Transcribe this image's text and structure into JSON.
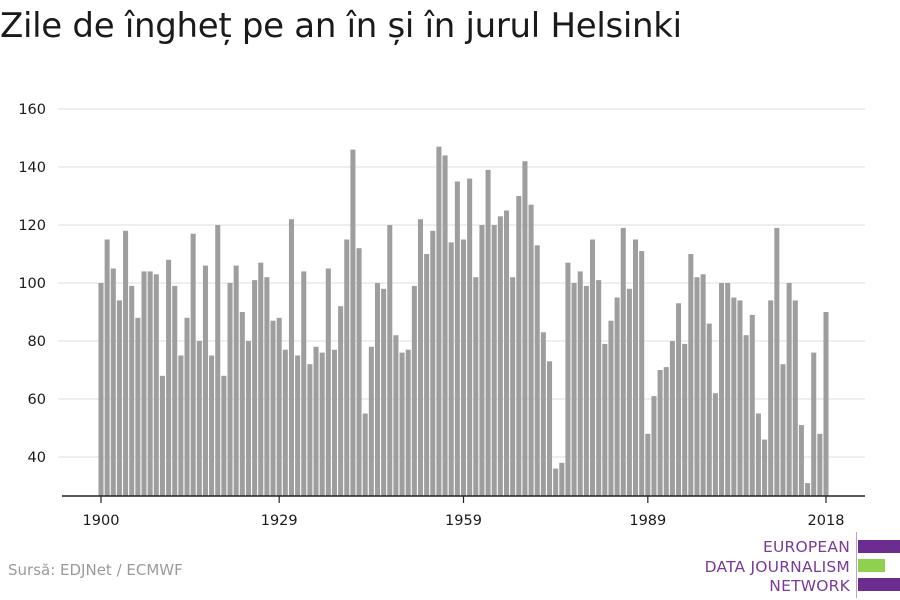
{
  "title": "Zile de îngheț pe an în și în jurul Helsinki",
  "source": "Sursă: EDJNet / ECMWF",
  "logo": {
    "lines": [
      "EUROPEAN",
      "DATA JOURNALISM",
      "NETWORK"
    ],
    "colors": {
      "text": "#7a3a9a",
      "purple": "#6b2d8f",
      "green": "#8fd14f"
    }
  },
  "colors": {
    "bar": "#9e9e9e",
    "grid": "#dddddd",
    "axis": "#222222",
    "tick_text": "#1a1a1a"
  },
  "chart_data": {
    "type": "bar",
    "title": "Zile de îngheț pe an în și în jurul Helsinki",
    "xlabel": "",
    "ylabel": "",
    "x_ticks": [
      "1900",
      "1929",
      "1959",
      "1989",
      "2018"
    ],
    "y_ticks": [
      40,
      60,
      80,
      100,
      120,
      140,
      160
    ],
    "ylim": [
      27,
      165
    ],
    "grid": "horizontal",
    "x": [
      1900,
      1901,
      1902,
      1903,
      1904,
      1905,
      1906,
      1907,
      1908,
      1909,
      1910,
      1911,
      1912,
      1913,
      1914,
      1915,
      1916,
      1917,
      1918,
      1919,
      1920,
      1921,
      1922,
      1923,
      1924,
      1925,
      1926,
      1927,
      1928,
      1929,
      1930,
      1931,
      1932,
      1933,
      1934,
      1935,
      1936,
      1937,
      1938,
      1939,
      1940,
      1941,
      1942,
      1943,
      1944,
      1945,
      1946,
      1947,
      1948,
      1949,
      1950,
      1951,
      1952,
      1953,
      1954,
      1955,
      1956,
      1957,
      1958,
      1959,
      1960,
      1961,
      1962,
      1963,
      1964,
      1965,
      1966,
      1967,
      1968,
      1969,
      1970,
      1971,
      1972,
      1973,
      1974,
      1975,
      1976,
      1977,
      1978,
      1979,
      1980,
      1981,
      1982,
      1983,
      1984,
      1985,
      1986,
      1987,
      1988,
      1989,
      1990,
      1991,
      1992,
      1993,
      1994,
      1995,
      1996,
      1997,
      1998,
      1999,
      2000,
      2001,
      2002,
      2003,
      2004,
      2005,
      2006,
      2007,
      2008,
      2009,
      2010,
      2011,
      2012,
      2013,
      2014,
      2015,
      2016,
      2017,
      2018
    ],
    "values": [
      100,
      115,
      105,
      94,
      118,
      99,
      88,
      104,
      104,
      103,
      68,
      108,
      99,
      75,
      88,
      117,
      80,
      106,
      75,
      120,
      68,
      100,
      106,
      90,
      80,
      101,
      107,
      102,
      87,
      88,
      77,
      122,
      75,
      104,
      72,
      78,
      76,
      105,
      77,
      92,
      115,
      146,
      112,
      55,
      78,
      100,
      98,
      120,
      82,
      76,
      77,
      99,
      122,
      110,
      118,
      147,
      144,
      114,
      135,
      115,
      136,
      102,
      120,
      139,
      120,
      123,
      125,
      102,
      130,
      142,
      127,
      113,
      83,
      73,
      36,
      38,
      107,
      100,
      104,
      99,
      115,
      101,
      79,
      87,
      95,
      119,
      98,
      115,
      111,
      48,
      61,
      70,
      71,
      80,
      93,
      79,
      110,
      102,
      103,
      86,
      62,
      100,
      100,
      95,
      94,
      82,
      89,
      55,
      46,
      94,
      119,
      72,
      100,
      94,
      51,
      31,
      76,
      48,
      90
    ]
  }
}
